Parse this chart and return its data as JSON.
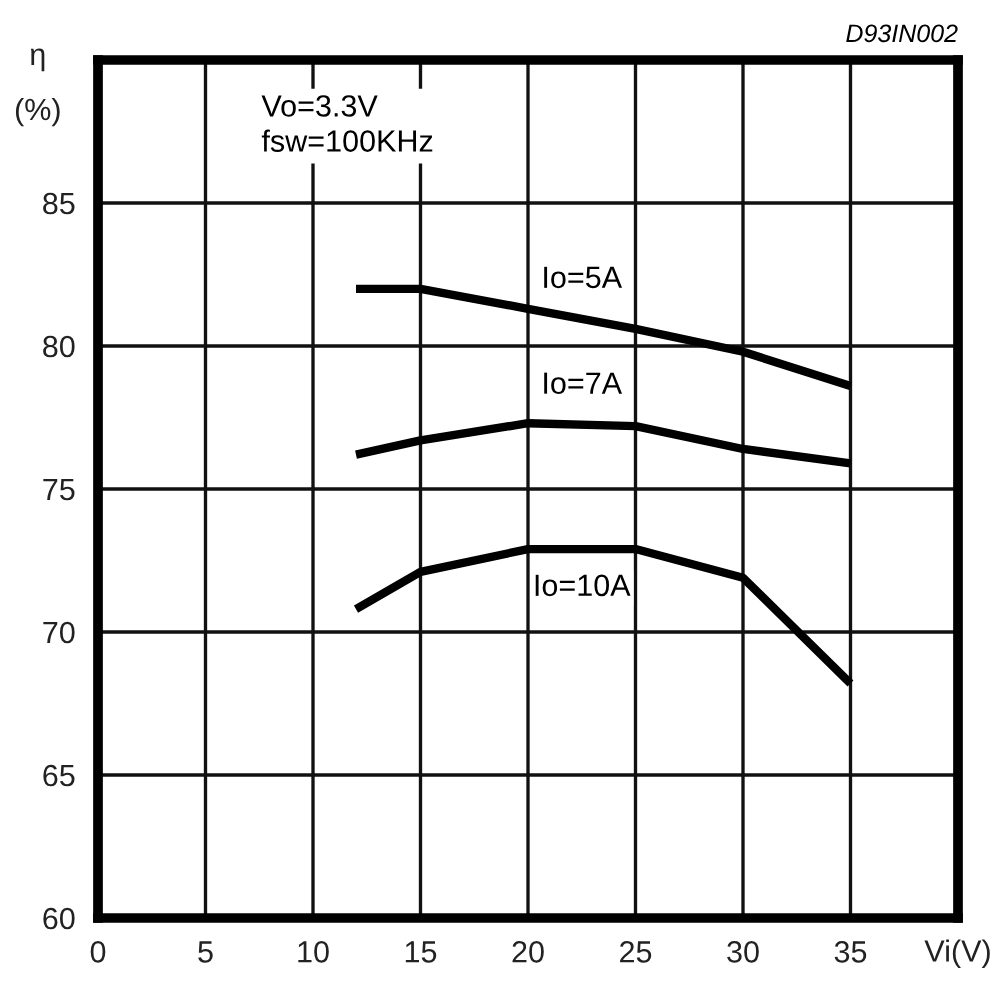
{
  "chart_data": {
    "type": "line",
    "xlabel": "Vi(V)",
    "ylabel": "η\n(%)",
    "xlim": [
      0,
      40
    ],
    "ylim": [
      60,
      90
    ],
    "xticks": [
      0,
      5,
      10,
      15,
      20,
      25,
      30,
      35
    ],
    "yticks": [
      60,
      65,
      70,
      75,
      80,
      85
    ],
    "grid": true,
    "marker": "none",
    "line_style": "solid",
    "x": [
      12,
      15,
      20,
      25,
      30,
      35
    ],
    "series": [
      {
        "name": "Io=5A",
        "color": "#000000",
        "values": [
          82.0,
          82.0,
          81.3,
          80.6,
          79.8,
          78.6
        ]
      },
      {
        "name": "Io=7A",
        "color": "#000000",
        "values": [
          76.2,
          76.7,
          77.3,
          77.2,
          76.4,
          75.9
        ]
      },
      {
        "name": "Io=10A",
        "color": "#000000",
        "values": [
          70.8,
          72.1,
          72.9,
          72.9,
          71.9,
          68.2
        ]
      }
    ],
    "annotations": [
      "Vo=3.3V\nfsw=100KHz",
      "D93IN002"
    ]
  }
}
